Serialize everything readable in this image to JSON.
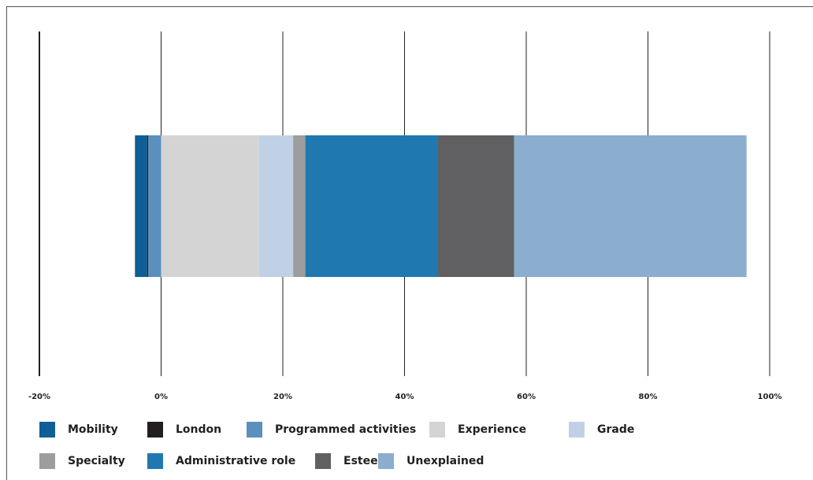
{
  "chart_data": {
    "type": "bar",
    "orientation": "horizontal",
    "series": [
      {
        "name": "Mobility",
        "color": "#0f5f96",
        "values": [
          -2.0
        ]
      },
      {
        "name": "London",
        "color": "#231f20",
        "values": [
          -0.2
        ]
      },
      {
        "name": "Programmed activities",
        "color": "#5b8fbe",
        "values": [
          -2.1
        ]
      },
      {
        "name": "Experience",
        "color": "#d4d4d4",
        "values": [
          16.1
        ]
      },
      {
        "name": "Grade",
        "color": "#c0d1e6",
        "values": [
          5.6
        ]
      },
      {
        "name": "Specialty",
        "color": "#9d9d9d",
        "values": [
          2.0
        ]
      },
      {
        "name": "Administrative role",
        "color": "#1f78b0",
        "values": [
          21.8
        ]
      },
      {
        "name": "Esteem",
        "color": "#606062",
        "values": [
          12.5
        ]
      },
      {
        "name": "Unexplained",
        "color": "#8badd0",
        "values": [
          38.2
        ]
      }
    ],
    "xlim": [
      -20,
      100
    ],
    "xticks": [
      {
        "value": -20,
        "label": "-20%"
      },
      {
        "value": 0,
        "label": "0%"
      },
      {
        "value": 20,
        "label": "20%"
      },
      {
        "value": 40,
        "label": "40%"
      },
      {
        "value": 60,
        "label": "60%"
      },
      {
        "value": 80,
        "label": "80%"
      },
      {
        "value": 100,
        "label": "100%"
      }
    ],
    "grid": true
  }
}
